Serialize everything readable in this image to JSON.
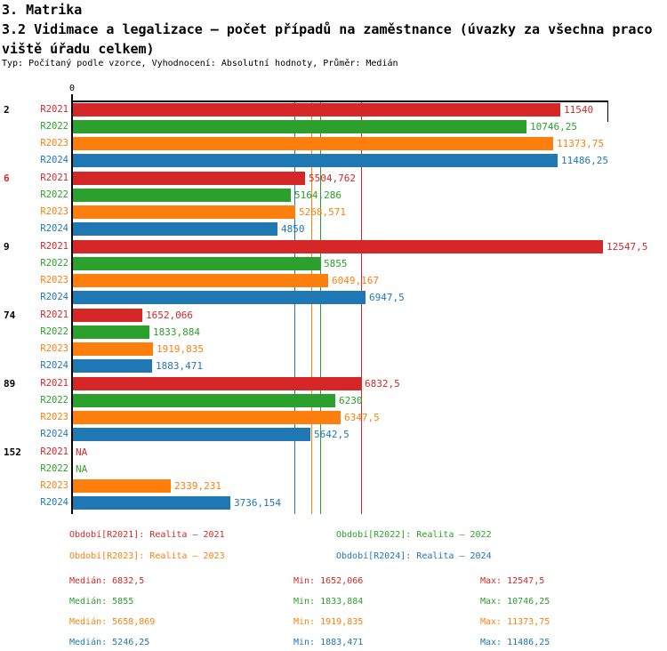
{
  "header": {
    "line1": "3. Matrika",
    "line2": "3.2 Vidimace a legalizace – počet případů na zaměstnance (úvazky za všechna praco",
    "line3": "viště úřadu celkem)",
    "subtitle": "Typ: Počítaný podle vzorce, Vyhodnocení: Absolutní hodnoty, Průměr: Medián"
  },
  "colors": {
    "R2021": "#d62728",
    "R2022": "#2ca02c",
    "R2023": "#ff7f0e",
    "R2024": "#1f77b4",
    "axis": "#000000"
  },
  "chart_data": {
    "type": "bar",
    "orientation": "horizontal",
    "x_origin_label": "0",
    "xlim": [
      0,
      12676
    ],
    "grid": false,
    "series_names": [
      "R2021",
      "R2022",
      "R2023",
      "R2024"
    ],
    "groups": [
      {
        "label": "2",
        "label_color": "#000000",
        "bars": [
          {
            "series": "R2021",
            "value": 11540,
            "text": "11540"
          },
          {
            "series": "R2022",
            "value": 10746.25,
            "text": "10746,25"
          },
          {
            "series": "R2023",
            "value": 11373.75,
            "text": "11373,75"
          },
          {
            "series": "R2024",
            "value": 11486.25,
            "text": "11486,25"
          }
        ]
      },
      {
        "label": "6",
        "label_color": "#d62728",
        "bars": [
          {
            "series": "R2021",
            "value": 5504.762,
            "text": "5504,762"
          },
          {
            "series": "R2022",
            "value": 5164.286,
            "text": "5164,286"
          },
          {
            "series": "R2023",
            "value": 5268.571,
            "text": "5268,571"
          },
          {
            "series": "R2024",
            "value": 4850,
            "text": "4850"
          }
        ]
      },
      {
        "label": "9",
        "label_color": "#000000",
        "bars": [
          {
            "series": "R2021",
            "value": 12547.5,
            "text": "12547,5"
          },
          {
            "series": "R2022",
            "value": 5855,
            "text": "5855"
          },
          {
            "series": "R2023",
            "value": 6049.167,
            "text": "6049,167"
          },
          {
            "series": "R2024",
            "value": 6947.5,
            "text": "6947,5"
          }
        ]
      },
      {
        "label": "74",
        "label_color": "#000000",
        "bars": [
          {
            "series": "R2021",
            "value": 1652.066,
            "text": "1652,066"
          },
          {
            "series": "R2022",
            "value": 1833.884,
            "text": "1833,884"
          },
          {
            "series": "R2023",
            "value": 1919.835,
            "text": "1919,835"
          },
          {
            "series": "R2024",
            "value": 1883.471,
            "text": "1883,471"
          }
        ]
      },
      {
        "label": "89",
        "label_color": "#000000",
        "bars": [
          {
            "series": "R2021",
            "value": 6832.5,
            "text": "6832,5"
          },
          {
            "series": "R2022",
            "value": 6230,
            "text": "6230"
          },
          {
            "series": "R2023",
            "value": 6347.5,
            "text": "6347,5"
          },
          {
            "series": "R2024",
            "value": 5642.5,
            "text": "5642,5"
          }
        ]
      },
      {
        "label": "152",
        "label_color": "#000000",
        "bars": [
          {
            "series": "R2021",
            "value": null,
            "text": "NA"
          },
          {
            "series": "R2022",
            "value": null,
            "text": "NA"
          },
          {
            "series": "R2023",
            "value": 2339.231,
            "text": "2339,231"
          },
          {
            "series": "R2024",
            "value": 3736.154,
            "text": "3736,154"
          }
        ]
      }
    ],
    "medians": {
      "R2021": 6832.5,
      "R2022": 5855,
      "R2023": 5658.869,
      "R2024": 5246.25
    }
  },
  "legend": {
    "items": [
      {
        "color_key": "R2021",
        "label": "Období[R2021]: Realita – 2021"
      },
      {
        "color_key": "R2022",
        "label": "Období[R2022]: Realita – 2022"
      },
      {
        "color_key": "R2023",
        "label": "Období[R2023]: Realita – 2023"
      },
      {
        "color_key": "R2024",
        "label": "Období[R2024]: Realita – 2024"
      }
    ]
  },
  "stats": {
    "rows": [
      {
        "color_key": "R2021",
        "median": "Medián: 6832,5",
        "min": "Min: 1652,066",
        "max": "Max: 12547,5"
      },
      {
        "color_key": "R2022",
        "median": "Medián: 5855",
        "min": "Min: 1833,884",
        "max": "Max: 10746,25"
      },
      {
        "color_key": "R2023",
        "median": "Medián: 5658,869",
        "min": "Min: 1919,835",
        "max": "Max: 11373,75"
      },
      {
        "color_key": "R2024",
        "median": "Medián: 5246,25",
        "min": "Min: 1883,471",
        "max": "Max: 11486,25"
      }
    ]
  }
}
